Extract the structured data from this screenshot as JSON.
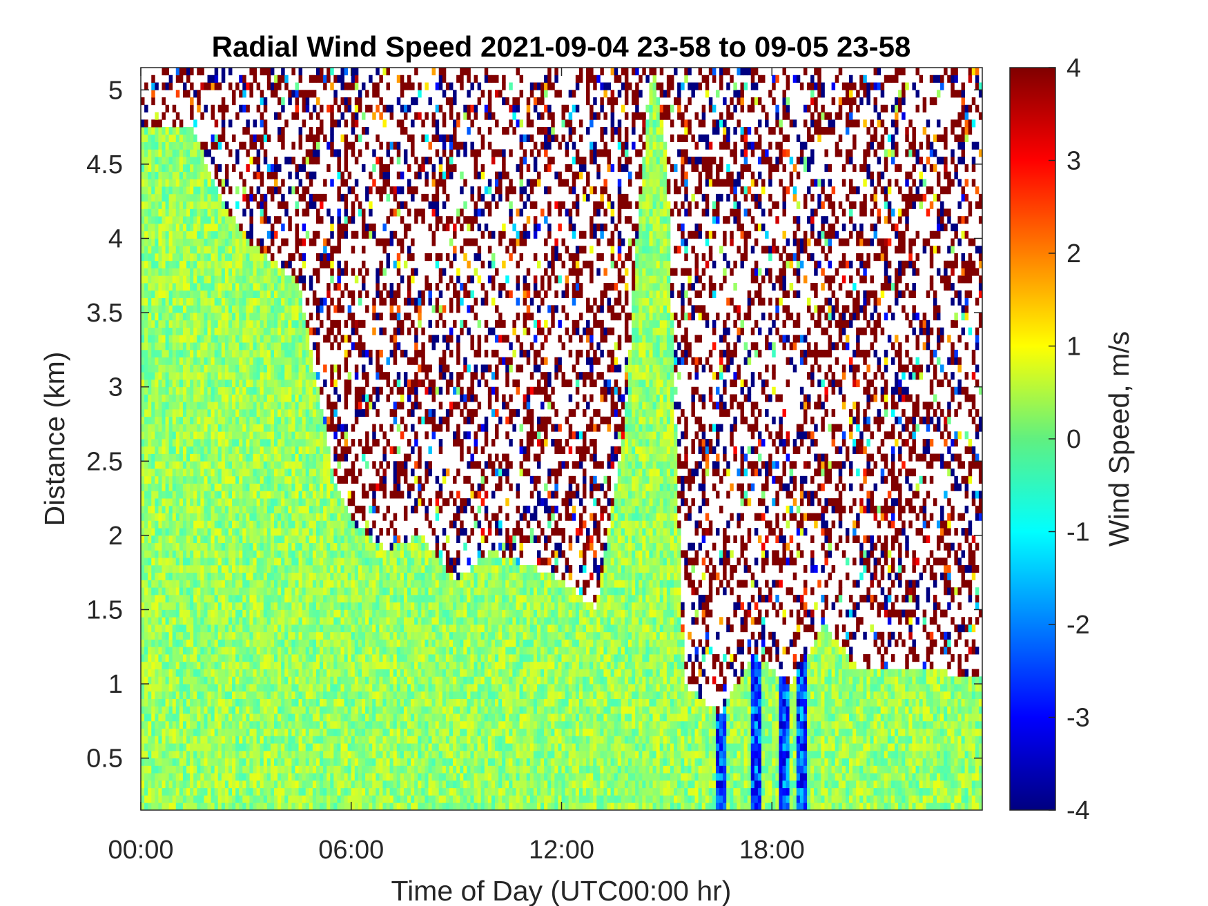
{
  "chart_data": {
    "type": "heatmap",
    "title": "Radial Wind Speed 2021-09-04 23-58 to 09-05 23-58",
    "xlabel": "Time of Day (UTC00:00 hr)",
    "ylabel": "Distance (km)",
    "colorbar_label": "Wind Speed, m/s",
    "xlim_hours": [
      0,
      24
    ],
    "ylim_km": [
      0.15,
      5.15
    ],
    "clim": [
      -4,
      4
    ],
    "colormap": "jet",
    "x_tick_values": [
      0,
      6,
      12,
      18
    ],
    "x_tick_labels": [
      "00:00",
      "06:00",
      "12:00",
      "18:00"
    ],
    "y_tick_values": [
      0.5,
      1,
      1.5,
      2,
      2.5,
      3,
      3.5,
      4,
      4.5,
      5
    ],
    "y_tick_labels": [
      "0.5",
      "1",
      "1.5",
      "2",
      "2.5",
      "3",
      "3.5",
      "4",
      "4.5",
      "5"
    ],
    "colorbar_ticks": [
      -4,
      -3,
      -2,
      -1,
      0,
      1,
      2,
      3,
      4
    ],
    "colorbar_tick_labels": [
      "-4",
      "-3",
      "-2",
      "-1",
      "0",
      "1",
      "2",
      "3",
      "4"
    ],
    "valid_data_top_km": [
      {
        "hour": 0.0,
        "km": 4.75
      },
      {
        "hour": 1.5,
        "km": 4.75
      },
      {
        "hour": 2.2,
        "km": 4.3
      },
      {
        "hour": 3.0,
        "km": 4.0
      },
      {
        "hour": 4.5,
        "km": 3.7
      },
      {
        "hour": 5.5,
        "km": 2.4
      },
      {
        "hour": 6.0,
        "km": 2.1
      },
      {
        "hour": 7.0,
        "km": 1.9
      },
      {
        "hour": 8.0,
        "km": 2.0
      },
      {
        "hour": 9.0,
        "km": 1.7
      },
      {
        "hour": 10.0,
        "km": 1.9
      },
      {
        "hour": 11.0,
        "km": 1.8
      },
      {
        "hour": 12.0,
        "km": 1.7
      },
      {
        "hour": 13.0,
        "km": 1.5
      },
      {
        "hour": 13.8,
        "km": 2.7
      },
      {
        "hour": 14.2,
        "km": 4.2
      },
      {
        "hour": 14.6,
        "km": 5.15
      },
      {
        "hour": 15.0,
        "km": 4.6
      },
      {
        "hour": 15.3,
        "km": 2.4
      },
      {
        "hour": 15.5,
        "km": 1.0
      },
      {
        "hour": 16.5,
        "km": 0.8
      },
      {
        "hour": 17.5,
        "km": 1.2
      },
      {
        "hour": 18.5,
        "km": 1.0
      },
      {
        "hour": 19.5,
        "km": 1.4
      },
      {
        "hour": 20.5,
        "km": 1.1
      },
      {
        "hour": 22.0,
        "km": 1.1
      },
      {
        "hour": 24.0,
        "km": 1.05
      }
    ],
    "typical_valid_speed_ms": 0.2,
    "noise_region_speed_ms": "random -4 to 4 (sparse)",
    "notable_negative_streaks_hours": [
      16.5,
      17.5,
      18.3,
      18.8
    ],
    "notable_negative_speed_ms": -3.5
  }
}
